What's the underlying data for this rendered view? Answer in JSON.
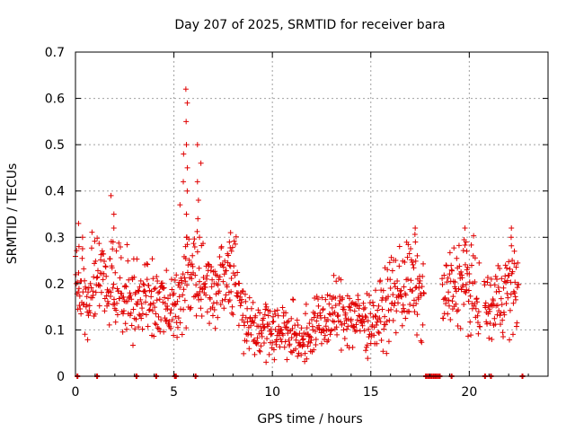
{
  "chart_data": {
    "type": "scatter",
    "title": "Day 207 of 2025, SRMTID for receiver bara",
    "xlabel": "GPS time / hours",
    "ylabel": "SRMTID / TECUs",
    "xlim": [
      0,
      24
    ],
    "ylim": [
      0,
      0.7
    ],
    "x_ticks": [
      0,
      5,
      10,
      15,
      20
    ],
    "y_ticks": [
      0,
      0.1,
      0.2,
      0.3,
      0.4,
      0.5,
      0.6,
      0.7
    ],
    "grid": true,
    "marker": "+",
    "color": "#e00000",
    "envelope": {
      "description": "approximate running median of the point cloud (hour, TECU)",
      "x": [
        0.0,
        0.5,
        1.0,
        1.5,
        2.0,
        2.5,
        3.0,
        3.5,
        4.0,
        4.5,
        5.0,
        5.5,
        6.0,
        6.5,
        7.0,
        7.5,
        8.0,
        8.5,
        9.0,
        9.5,
        10.0,
        10.5,
        11.0,
        11.5,
        12.0,
        12.5,
        13.0,
        13.5,
        14.0,
        14.5,
        15.0,
        15.5,
        16.0,
        16.5,
        17.0,
        17.5,
        18.5,
        19.0,
        19.5,
        20.0,
        20.5,
        21.0,
        21.5,
        22.0,
        22.5
      ],
      "y": [
        0.2,
        0.17,
        0.19,
        0.2,
        0.21,
        0.19,
        0.15,
        0.17,
        0.16,
        0.15,
        0.14,
        0.2,
        0.25,
        0.2,
        0.19,
        0.21,
        0.23,
        0.14,
        0.11,
        0.11,
        0.1,
        0.1,
        0.09,
        0.08,
        0.1,
        0.12,
        0.13,
        0.14,
        0.13,
        0.12,
        0.12,
        0.13,
        0.17,
        0.19,
        0.2,
        0.17,
        0.16,
        0.18,
        0.21,
        0.19,
        0.16,
        0.14,
        0.17,
        0.19,
        0.19
      ]
    },
    "spikes": [
      {
        "x": 0.25,
        "values": [
          0.3,
          0.33,
          0.28
        ]
      },
      {
        "x": 1.9,
        "values": [
          0.35,
          0.39,
          0.32,
          0.29
        ]
      },
      {
        "x": 5.6,
        "values": [
          0.62,
          0.59,
          0.55,
          0.5,
          0.45,
          0.4,
          0.35,
          0.3,
          0.28
        ]
      },
      {
        "x": 5.4,
        "values": [
          0.48,
          0.42,
          0.37
        ]
      },
      {
        "x": 6.3,
        "values": [
          0.5,
          0.46,
          0.42,
          0.38,
          0.34,
          0.3
        ]
      },
      {
        "x": 7.8,
        "values": [
          0.31,
          0.29,
          0.27
        ]
      },
      {
        "x": 17.3,
        "values": [
          0.32,
          0.29,
          0.26
        ]
      },
      {
        "x": 19.9,
        "values": [
          0.32,
          0.29,
          0.27
        ]
      },
      {
        "x": 22.2,
        "values": [
          0.32,
          0.3,
          0.27
        ]
      }
    ],
    "zero_points": {
      "x": [
        0.1,
        1.1,
        3.1,
        4.1,
        5.05,
        5.1,
        6.1,
        17.8,
        17.9,
        18.0,
        18.1,
        18.2,
        18.3,
        18.4,
        18.5,
        19.1,
        20.8,
        21.1,
        22.7
      ]
    }
  }
}
